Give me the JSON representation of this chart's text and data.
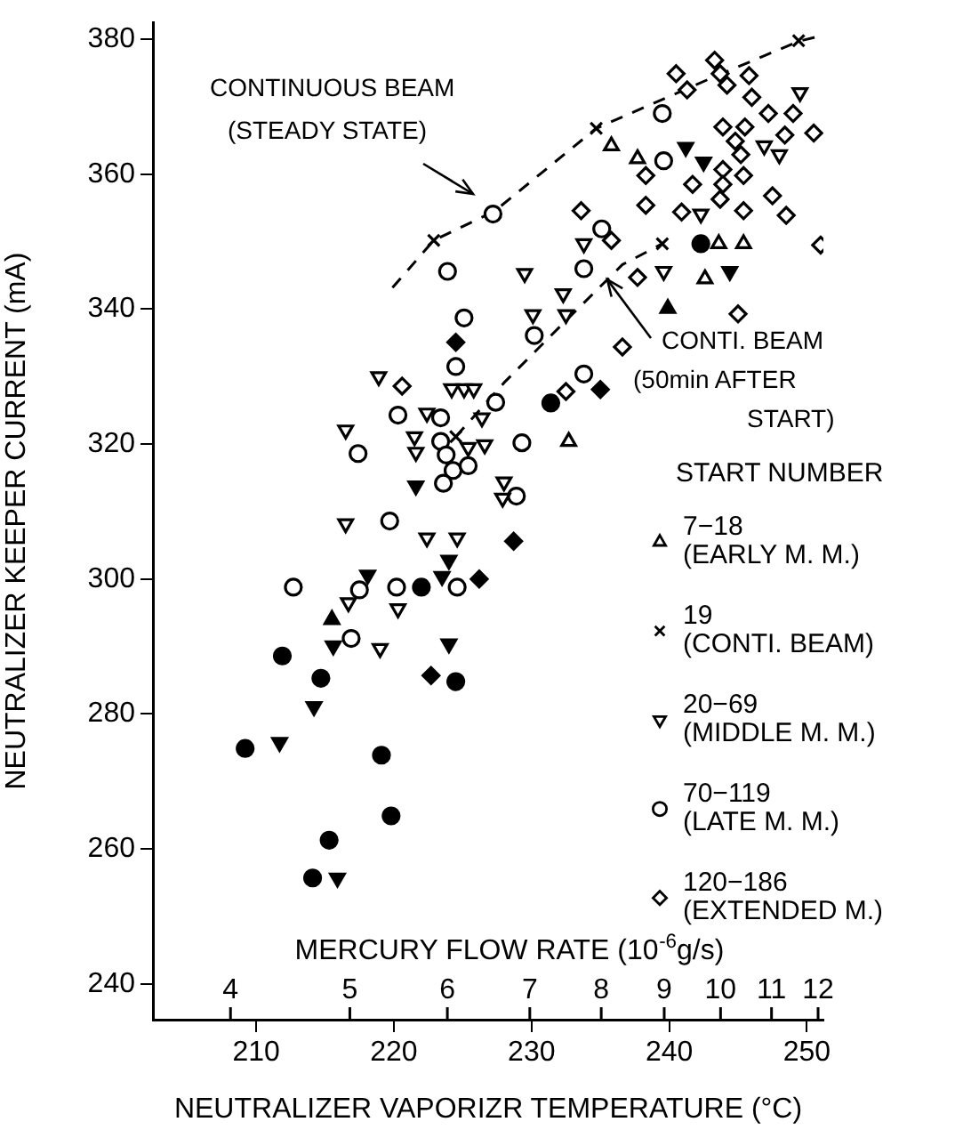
{
  "chart_data": {
    "type": "scatter",
    "xlabel": "NEUTRALIZER VAPORIZR TEMPERATURE (°C)",
    "ylabel": "NEUTRALIZER KEEPER CURRENT (mA)",
    "x2label": "MERCURY FLOW RATE (10$^{-6}$g/s)",
    "legend_title": "START NUMBER",
    "legend": "right",
    "grid": false,
    "log": "x2",
    "xlim": [
      202.5,
      251.2
    ],
    "xticks": [
      210,
      220,
      230,
      240,
      250
    ],
    "ylim": [
      234.7,
      382.5
    ],
    "yticks": [
      240,
      260,
      280,
      300,
      320,
      340,
      360,
      380
    ],
    "x2lim": [
      3.46,
      12.12
    ],
    "x2ticks": [
      4,
      5,
      6,
      7,
      8,
      9,
      10,
      11,
      12
    ],
    "annotations": [
      "CONTINUOUS BEAM\n(STEADY STATE)",
      {
        "text": "CONTI. BEAM\n(50min AFTER\nSTART)",
        "x": 235.5,
        "y": 344.4
      }
    ],
    "series": [
      {
        "type": "line",
        "color": "#000000",
        "marker": "none",
        "line_style": "dashed",
        "x": [
          219.9,
          222.9,
          227.3,
          234.7,
          243.0,
          249.4,
          250.8
        ],
        "values": [
          343.2,
          350.2,
          354.5,
          366.8,
          374.2,
          379.7,
          380.4
        ]
      },
      {
        "type": "line",
        "color": "#000000",
        "marker": "none",
        "line_style": "dashed",
        "x": [
          224.5,
          228.0,
          232.3,
          236.6,
          239.5
        ],
        "values": [
          321.1,
          329.1,
          337.9,
          346.6,
          349.7
        ]
      },
      {
        "name": "7−18\n(EARLY M. M.)",
        "color": "#000000",
        "marker": "triangle",
        "x": [
          232.7,
          235.8,
          237.7,
          243.6,
          245.4,
          242.6
        ],
        "values": [
          320.4,
          364.2,
          362.3,
          349.7,
          349.7,
          344.5
        ]
      },
      {
        "name": "19\n(CONTI. BEAM)",
        "color": "#000000",
        "marker": "cross",
        "x": [
          222.9,
          224.5,
          234.7,
          239.5,
          249.4
        ],
        "values": [
          350.2,
          321.1,
          366.8,
          349.7,
          379.8
        ]
      },
      {
        "name": "20−69\n(MIDDLE M. M.)",
        "color": "#000000",
        "marker": "triangle-down",
        "x": [
          218.9,
          224.2,
          225.1,
          225.8,
          222.4,
          226.4,
          216.5,
          221.5,
          221.6,
          225.4,
          226.6,
          216.5,
          222.4,
          224.6,
          216.7,
          220.3,
          219.0,
          228.0,
          227.9,
          249.5,
          246.9,
          248.0,
          242.3,
          239.6,
          233.8,
          229.5,
          232.3,
          232.5,
          230.1
        ],
        "values": [
          330.0,
          328.2,
          328.2,
          328.2,
          324.6,
          323.9,
          322.1,
          321.1,
          318.8,
          319.5,
          319.9,
          308.2,
          306.1,
          306.1,
          296.5,
          295.6,
          289.7,
          314.4,
          312.0,
          372.1,
          364.2,
          362.9,
          354.1,
          345.6,
          349.7,
          345.3,
          342.3,
          339.2,
          339.2
        ]
      },
      {
        "name": "70−119\n(LATE M. M.)",
        "color": "#000000",
        "marker": "circle",
        "x": [
          227.2,
          223.9,
          225.1,
          224.5,
          220.3,
          223.4,
          227.4,
          217.4,
          223.4,
          223.8,
          224.3,
          225.4,
          223.6,
          219.7,
          212.7,
          217.5,
          220.2,
          224.6,
          216.9,
          229.3,
          228.9,
          239.5,
          239.6,
          235.1,
          233.8,
          230.2,
          233.8
        ],
        "values": [
          354.1,
          345.6,
          338.7,
          331.5,
          324.3,
          323.9,
          326.2,
          318.6,
          320.4,
          318.4,
          316.1,
          316.8,
          314.2,
          308.6,
          298.8,
          298.4,
          298.8,
          298.8,
          291.2,
          320.2,
          312.3,
          369.0,
          362.0,
          351.9,
          346.0,
          336.1,
          330.4
        ]
      },
      {
        "name": "120−186\n(EXTENDED M.)",
        "color": "#000000",
        "marker": "diamond",
        "x": [
          220.6,
          240.5,
          241.3,
          243.3,
          243.7,
          244.2,
          245.8,
          246.0,
          247.2,
          249.0,
          250.5,
          243.9,
          245.5,
          248.4,
          244.8,
          245.2,
          238.3,
          241.7,
          243.9,
          245.4,
          243.9,
          238.3,
          240.9,
          243.7,
          245.4,
          247.5,
          248.5,
          233.6,
          235.8,
          251.0,
          237.7,
          245.0,
          236.6,
          232.5
        ],
        "values": [
          328.6,
          374.9,
          372.5,
          376.9,
          374.9,
          373.2,
          374.6,
          371.4,
          369.0,
          369.0,
          366.1,
          367.0,
          367.0,
          365.8,
          364.9,
          362.9,
          359.8,
          358.5,
          360.7,
          359.8,
          358.5,
          355.4,
          354.4,
          356.3,
          354.6,
          356.8,
          353.9,
          354.6,
          350.2,
          349.5,
          344.7,
          339.3,
          334.4,
          327.8
        ]
      },
      {
        "color": "#000000",
        "marker": "circle",
        "x": [
          222.0,
          211.9,
          214.7,
          224.5,
          209.2,
          219.1,
          219.8,
          215.3,
          214.1,
          231.4,
          242.3
        ],
        "values": [
          298.8,
          288.6,
          285.3,
          284.8,
          274.9,
          273.9,
          264.9,
          261.3,
          255.7,
          326.1,
          349.7
        ]
      },
      {
        "color": "#000000",
        "marker": "triangle-down",
        "x": [
          221.6,
          224.0,
          218.1,
          223.5,
          215.6,
          224.0,
          214.2,
          211.7,
          215.9,
          241.2,
          242.5,
          244.4
        ],
        "values": [
          313.8,
          302.8,
          300.6,
          300.4,
          290.1,
          290.4,
          281.1,
          275.8,
          255.7,
          364.0,
          361.8,
          345.6
        ]
      },
      {
        "color": "#000000",
        "marker": "diamond",
        "x": [
          224.5,
          226.2,
          222.7,
          228.7,
          235.0
        ],
        "values": [
          335.1,
          300.0,
          285.7,
          305.6,
          328.1
        ]
      },
      {
        "color": "#000000",
        "marker": "triangle",
        "x": [
          215.5,
          239.9
        ],
        "values": [
          294.0,
          340.1
        ]
      }
    ]
  }
}
